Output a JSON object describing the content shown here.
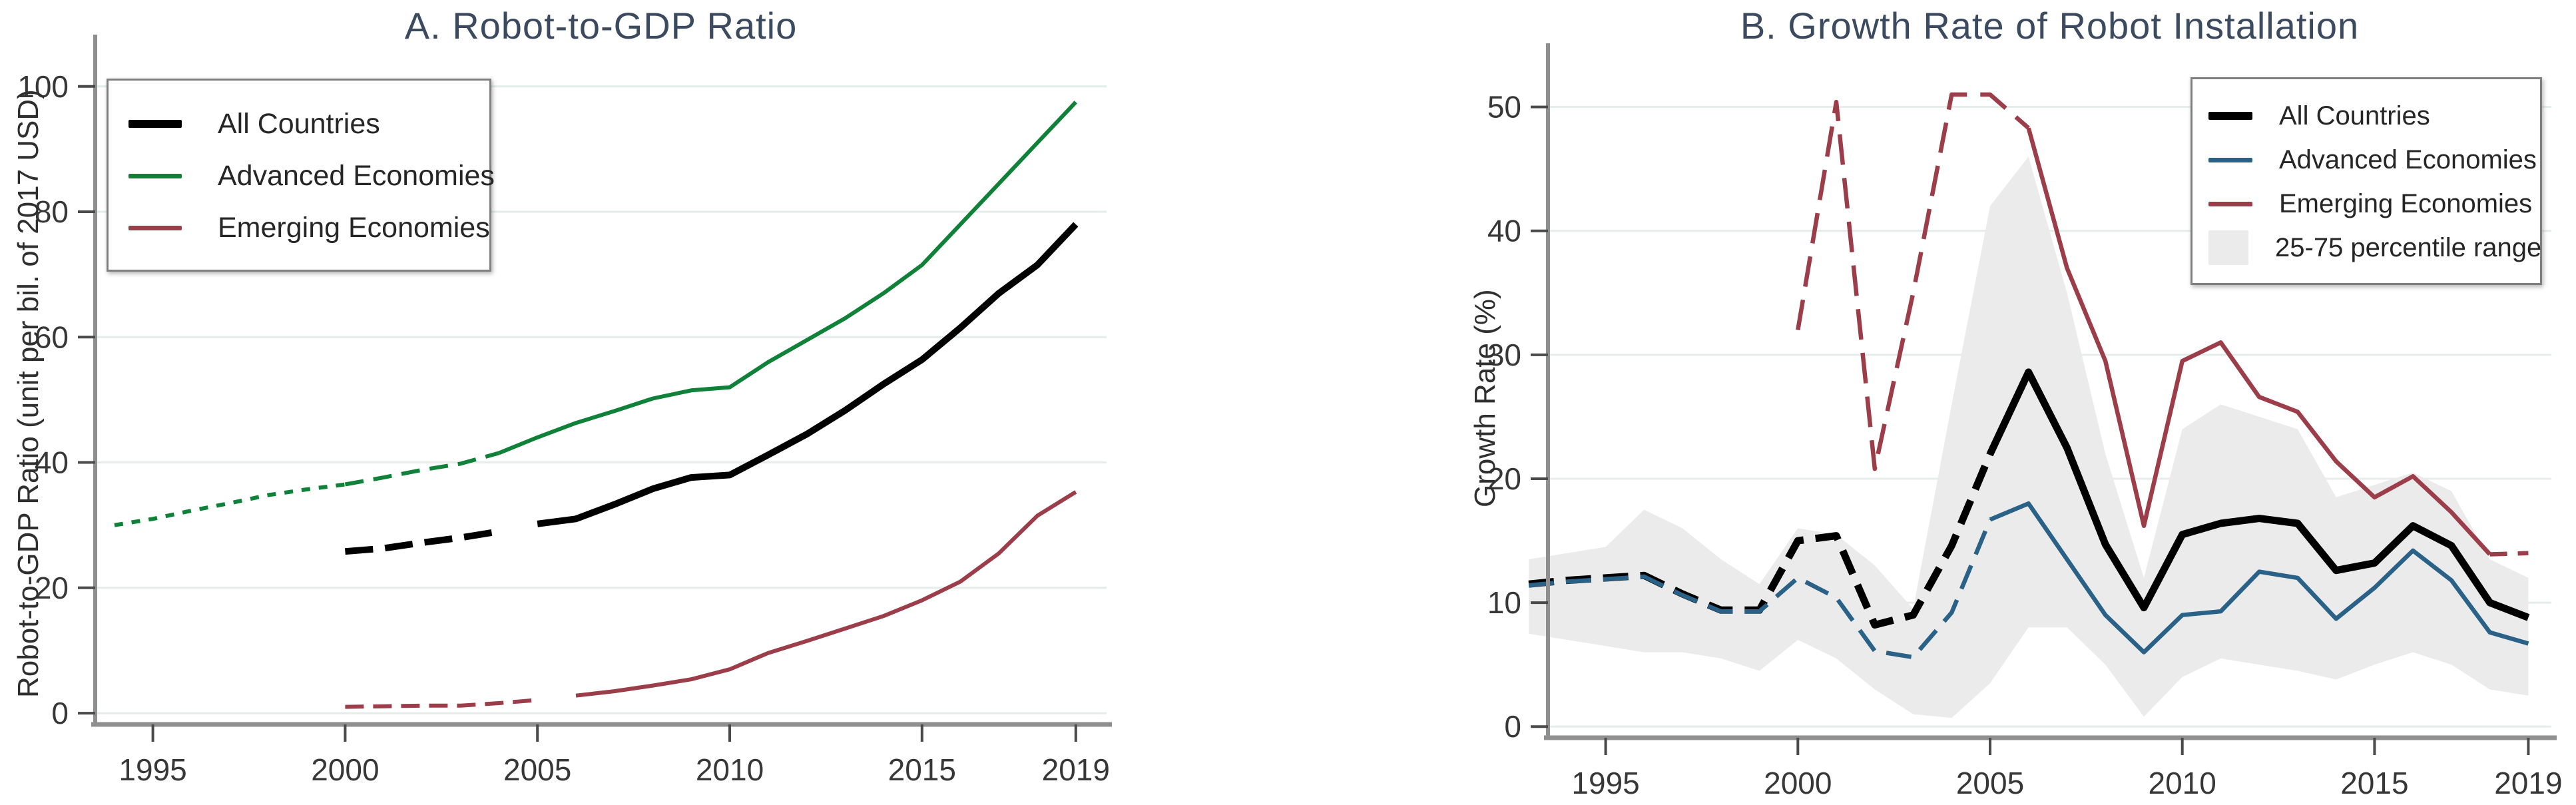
{
  "colors": {
    "all": "#000000",
    "advanced_gdp": "#0f8139",
    "advanced_growth": "#2a6186",
    "emerging": "#9c3d4a",
    "band": "#ebebeb",
    "grid": "#e4edea",
    "axis": "#8f8f8f",
    "tick": "#4a4a4a",
    "title": "#3c4a60"
  },
  "chart_data": [
    {
      "type": "line",
      "panel": "A",
      "title": "A. Robot-to-GDP Ratio",
      "ylabel": "Robot-to-GDP Ratio (unit per bil. of 2017 USD)",
      "xlabel": "",
      "xlim": [
        1993.5,
        2019.8
      ],
      "ylim": [
        -1.8,
        107.2
      ],
      "xticks": [
        1995,
        2000,
        2005,
        2010,
        2015,
        2019
      ],
      "yticks": [
        0,
        20,
        40,
        60,
        80,
        100
      ],
      "grid": "horizontal",
      "legend_position": "top-left",
      "series": [
        {
          "name": "All Countries",
          "color": "all",
          "width": 10,
          "x": [
            2000,
            2001,
            2002,
            2003,
            2004,
            2005,
            2006,
            2007,
            2008,
            2009,
            2010,
            2011,
            2012,
            2013,
            2014,
            2015,
            2016,
            2017,
            2018,
            2019
          ],
          "y": [
            25.8,
            26.3,
            27.2,
            28,
            29,
            30.2,
            31,
            33.3,
            35.8,
            37.6,
            38,
            41.2,
            44.5,
            48.3,
            52.5,
            56.4,
            61.5,
            67,
            71.5,
            78
          ],
          "segments": [
            {
              "until": 2004.5,
              "dash": "42 18"
            },
            {
              "until": 2020,
              "dash": ""
            }
          ]
        },
        {
          "name": "Advanced Economies",
          "color": "advanced_gdp",
          "width": 6,
          "x": [
            1994,
            1995,
            1996,
            1997,
            1998,
            1999,
            2000,
            2001,
            2002,
            2003,
            2004,
            2005,
            2006,
            2007,
            2008,
            2009,
            2010,
            2011,
            2012,
            2013,
            2014,
            2015,
            2016,
            2017,
            2018,
            2019
          ],
          "y": [
            30,
            31,
            32.3,
            33.5,
            34.8,
            35.7,
            36.5,
            37.6,
            38.8,
            39.8,
            41.5,
            44,
            46.3,
            48.2,
            50.2,
            51.5,
            52,
            56,
            59.5,
            63,
            67,
            71.5,
            78,
            84.5,
            91,
            97.5
          ],
          "segments": [
            {
              "until": 2000,
              "dash": "13 13"
            },
            {
              "until": 2004,
              "dash": "28 15"
            },
            {
              "until": 2020,
              "dash": ""
            }
          ]
        },
        {
          "name": "Emerging Economies",
          "color": "emerging",
          "width": 6,
          "x": [
            2000,
            2001,
            2002,
            2003,
            2004,
            2005,
            2006,
            2007,
            2008,
            2009,
            2010,
            2011,
            2012,
            2013,
            2014,
            2015,
            2016,
            2017,
            2018,
            2019
          ],
          "y": [
            1,
            1.1,
            1.2,
            1.2,
            1.6,
            2.1,
            2.8,
            3.5,
            4.4,
            5.4,
            7,
            9.6,
            11.5,
            13.5,
            15.5,
            18,
            21,
            25.5,
            31.5,
            35.3
          ],
          "segments": [
            {
              "until": 2005.5,
              "dash": "28 14"
            },
            {
              "until": 2020,
              "dash": ""
            }
          ]
        }
      ]
    },
    {
      "type": "line",
      "panel": "B",
      "title": "B. Growth Rate of Robot Installation",
      "ylabel": "Growth Rate (%)",
      "xlabel": "",
      "xlim": [
        1993.5,
        2019.6
      ],
      "ylim": [
        -0.9,
        54.6
      ],
      "xticks": [
        1995,
        2000,
        2005,
        2010,
        2015,
        2019
      ],
      "yticks": [
        0,
        10,
        20,
        30,
        40,
        50
      ],
      "grid": "horizontal",
      "legend_position": "top-right",
      "band": {
        "label": "25-75 percentile range",
        "x": [
          1993,
          1994,
          1995,
          1996,
          1997,
          1998,
          1999,
          2000,
          2001,
          2002,
          2003,
          2004,
          2005,
          2006,
          2007,
          2008,
          2009,
          2010,
          2011,
          2012,
          2013,
          2014,
          2015,
          2016,
          2017,
          2018,
          2019
        ],
        "upper": [
          13.5,
          14,
          14.5,
          17.5,
          16,
          13.5,
          11.5,
          16,
          15.5,
          13,
          9.5,
          26,
          42,
          46,
          35,
          22,
          12,
          24,
          26,
          25,
          24,
          18.5,
          19.5,
          20.5,
          19,
          13.5,
          12
        ],
        "lower": [
          7.5,
          7,
          6.5,
          6,
          6,
          5.5,
          4.5,
          7,
          5.5,
          3,
          1,
          0.7,
          3.5,
          8,
          8,
          5,
          0.8,
          4,
          5.5,
          5,
          4.5,
          3.8,
          5,
          6,
          5,
          3,
          2.5
        ]
      },
      "series": [
        {
          "name": "All Countries",
          "color": "all",
          "width": 11,
          "x": [
            1993,
            1994,
            1995,
            1996,
            1997,
            1998,
            1999,
            2000,
            2001,
            2002,
            2003,
            2004,
            2005,
            2006,
            2007,
            2008,
            2009,
            2010,
            2011,
            2012,
            2013,
            2014,
            2015,
            2016,
            2017,
            2018,
            2019
          ],
          "y": [
            11.5,
            11.8,
            12,
            12.2,
            10.7,
            9.4,
            9.4,
            15,
            15.4,
            8.2,
            9,
            14.6,
            22,
            28.6,
            22.5,
            14.7,
            9.6,
            15.5,
            16.4,
            16.8,
            16.4,
            12.6,
            13.2,
            16.2,
            14.6,
            10,
            8.8
          ],
          "segments": [
            {
              "until": 2005,
              "dash": "38 18"
            },
            {
              "until": 2020,
              "dash": ""
            }
          ]
        },
        {
          "name": "Advanced Economies",
          "color": "advanced_growth",
          "width": 6.5,
          "x": [
            1993,
            1994,
            1995,
            1996,
            1997,
            1998,
            1999,
            2000,
            2001,
            2002,
            2003,
            2004,
            2005,
            2006,
            2007,
            2008,
            2009,
            2010,
            2011,
            2012,
            2013,
            2014,
            2015,
            2016,
            2017,
            2018,
            2019
          ],
          "y": [
            11.4,
            11.7,
            11.9,
            12.1,
            10.6,
            9.3,
            9.3,
            12,
            10.4,
            6.1,
            5.6,
            9.2,
            16.7,
            18,
            13.5,
            9,
            6,
            9,
            9.3,
            12.5,
            12,
            8.7,
            11.2,
            14.2,
            11.8,
            7.6,
            6.7
          ],
          "segments": [
            {
              "until": 2005,
              "dash": "38 18"
            },
            {
              "until": 2020,
              "dash": ""
            }
          ]
        },
        {
          "name": "Emerging Economies",
          "color": "emerging",
          "width": 6.5,
          "x": [
            2000,
            2001,
            2002,
            2003,
            2004,
            2005,
            2006,
            2007,
            2008,
            2009,
            2010,
            2011,
            2012,
            2013,
            2014,
            2015,
            2016,
            2017,
            2018,
            2019
          ],
          "y": [
            32,
            50.4,
            20.8,
            35,
            51,
            51,
            48.3,
            37,
            29.5,
            16.2,
            29.5,
            31,
            26.6,
            25.4,
            21.4,
            18.5,
            20.2,
            17.3,
            13.9,
            14
          ],
          "segments": [
            {
              "until": 2006,
              "dash": "46 20"
            },
            {
              "until": 2018,
              "dash": ""
            },
            {
              "until": 2020,
              "dash": "26 16"
            }
          ]
        }
      ]
    }
  ]
}
